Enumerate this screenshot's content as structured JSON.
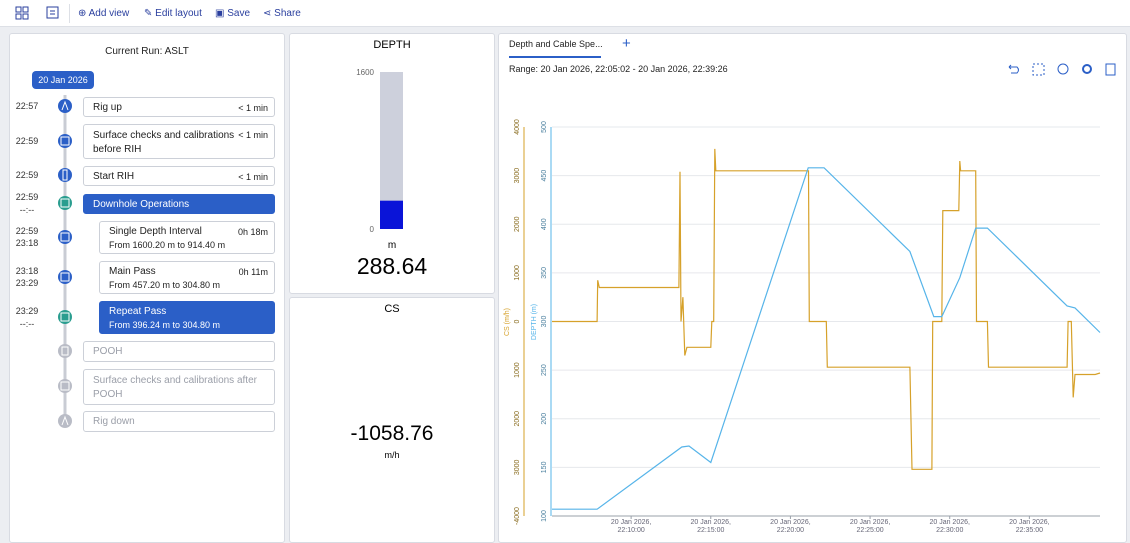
{
  "toolbar": {
    "items": [
      "Add view",
      "Edit layout",
      "Save",
      "Share"
    ]
  },
  "run": {
    "title": "Current Run: ASLT",
    "date": "20 Jan 2026",
    "steps": [
      {
        "times": [
          "22:57"
        ],
        "label": "Rig up",
        "duration": "< 1 min"
      },
      {
        "times": [
          "22:59"
        ],
        "label": "Surface checks and calibrations before RIH",
        "duration": "< 1 min"
      },
      {
        "times": [
          "22:59"
        ],
        "label": "Start RIH",
        "duration": "< 1 min"
      },
      {
        "times": [
          "22:59",
          "--:--"
        ],
        "label": "Downhole Operations"
      },
      {
        "times": [
          "22:59",
          "23:18"
        ],
        "label": "Single Depth Interval",
        "duration": "0h 18m",
        "detail": "From 1600.20 m to 914.40 m"
      },
      {
        "times": [
          "23:18",
          "23:29"
        ],
        "label": "Main Pass",
        "duration": "0h 11m",
        "detail": "From 457.20 m to 304.80 m"
      },
      {
        "times": [
          "23:29",
          "--:--"
        ],
        "label": "Repeat Pass",
        "detail": "From 396.24 m to 304.80 m"
      },
      {
        "label": "POOH"
      },
      {
        "label": "Surface checks and calibrations after POOH"
      },
      {
        "label": "Rig down"
      }
    ]
  },
  "chart_data": [
    {
      "type": "gauge",
      "title": "DEPTH",
      "ylim": [
        0,
        1600
      ],
      "yticks": [
        1600,
        0
      ],
      "value": 288.64,
      "unit": "m",
      "color": "#0a14d8"
    },
    {
      "type": "readout",
      "title": "CS",
      "value": -1058.76,
      "unit": "m/h"
    },
    {
      "type": "line",
      "tab": "Depth and Cable Spe...",
      "subtitle": "Range: 20 Jan 2026, 22:05:02 - 20 Jan 2026, 22:39:26",
      "ylabel": "CS (m/h)",
      "y2label": "DEPTH (m)",
      "grid": true,
      "xlim": [
        "22:05:02",
        "22:39:26"
      ],
      "xticks": [
        {
          "value": "22:10:00",
          "label": "20 Jan 2026, 22:10:00"
        },
        {
          "value": "22:15:00",
          "label": "20 Jan 2026, 22:15:00"
        },
        {
          "value": "22:20:00",
          "label": "20 Jan 2026, 22:20:00"
        },
        {
          "value": "22:25:00",
          "label": "20 Jan 2026, 22:25:00"
        },
        {
          "value": "22:30:00",
          "label": "20 Jan 2026, 22:30:00"
        },
        {
          "value": "22:35:00",
          "label": "20 Jan 2026, 22:35:00"
        }
      ],
      "ylim": [
        -4000,
        4000
      ],
      "yticks": [
        4000,
        3000,
        2000,
        1000,
        0,
        {
          "value": -1000,
          "label": "1000"
        },
        {
          "value": -2000,
          "label": "2000"
        },
        {
          "value": -3000,
          "label": "3000"
        },
        -4000
      ],
      "y2lim": [
        100,
        500
      ],
      "y2ticks": [
        500,
        450,
        400,
        350,
        300,
        250,
        200,
        150,
        100
      ],
      "series": [
        {
          "color": "#d6a12a",
          "x": [
            "22:05:02",
            "22:07:52",
            "22:07:54",
            "22:08:00",
            "22:13:00",
            "22:13:04",
            "22:13:08",
            "22:13:15",
            "22:13:22",
            "22:13:30",
            "22:15:00",
            "22:15:04",
            "22:15:11",
            "22:15:15",
            "22:15:19",
            "22:16:08",
            "22:21:08",
            "22:21:11",
            "22:22:15",
            "22:22:19",
            "22:27:30",
            "22:27:38",
            "22:28:53",
            "22:28:56",
            "22:29:30",
            "22:29:34",
            "22:30:34",
            "22:30:38",
            "22:30:41",
            "22:31:38",
            "22:31:41",
            "22:32:22",
            "22:32:26",
            "22:37:22",
            "22:37:26",
            "22:37:38",
            "22:37:45",
            "22:37:52",
            "22:39:08",
            "22:39:26"
          ],
          "values": [
            0,
            0,
            850,
            700,
            700,
            3080,
            0,
            500,
            -700,
            -530,
            -530,
            0,
            0,
            3550,
            3100,
            3100,
            3100,
            0,
            0,
            -940,
            -940,
            -3040,
            -3040,
            0,
            0,
            2280,
            2280,
            3300,
            3100,
            3100,
            0,
            0,
            -940,
            -940,
            0,
            0,
            -1560,
            -1090,
            -1090,
            -1058.76
          ]
        },
        {
          "color": "#56b4e9",
          "axis": "y2",
          "x": [
            "22:05:02",
            "22:07:52",
            "22:13:11",
            "22:13:38",
            "22:15:00",
            "22:21:07",
            "22:22:07",
            "22:27:30",
            "22:29:00",
            "22:29:30",
            "22:30:38",
            "22:31:38",
            "22:32:22",
            "22:37:22",
            "22:37:52",
            "22:39:26"
          ],
          "values": [
            107,
            107,
            171,
            172,
            155,
            458,
            458,
            372,
            305,
            305,
            345,
            396,
            396,
            316,
            314,
            288.64
          ]
        }
      ]
    }
  ]
}
